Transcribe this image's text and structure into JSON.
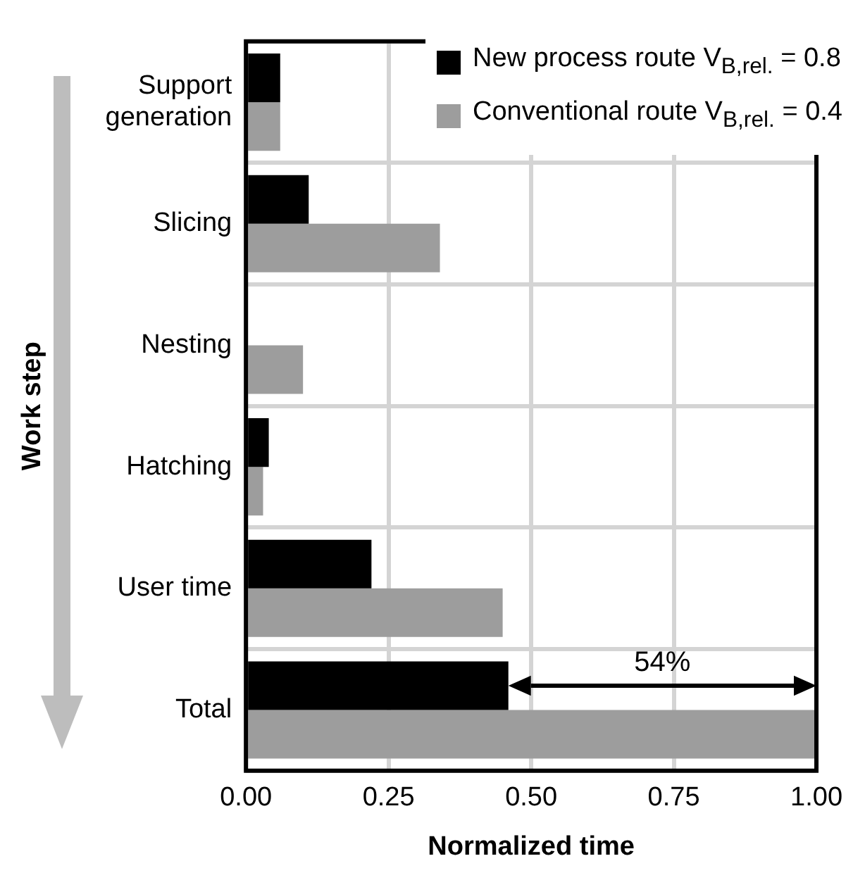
{
  "chart_data": {
    "type": "bar",
    "orientation": "horizontal",
    "xlabel": "Normalized time",
    "ylabel": "Work step",
    "categories": [
      "Support generation",
      "Slicing",
      "Nesting",
      "Hatching",
      "User time",
      "Total"
    ],
    "series": [
      {
        "name": "New process route V$_{B,rel.}$ = 0.8",
        "color": "#000000",
        "values": [
          0.06,
          0.11,
          0,
          0.04,
          0.22,
          0.46
        ]
      },
      {
        "name": "Conventional route V$_{B,rel.}$ = 0.4",
        "color": "#9d9d9d",
        "values": [
          0.06,
          0.34,
          0.1,
          0.03,
          0.45,
          1.0
        ]
      }
    ],
    "xlim": [
      0,
      1
    ],
    "xticks": [
      {
        "value": 0,
        "label": "0.00"
      },
      {
        "value": 0.25,
        "label": "0.25"
      },
      {
        "value": 0.5,
        "label": "0.50"
      },
      {
        "value": 0.75,
        "label": "0.75"
      },
      {
        "value": 1,
        "label": "1.00"
      }
    ],
    "grid": true,
    "legend": "top right",
    "annotations": [
      {
        "text": "54%",
        "x": 0.73,
        "y": "Total"
      }
    ]
  }
}
